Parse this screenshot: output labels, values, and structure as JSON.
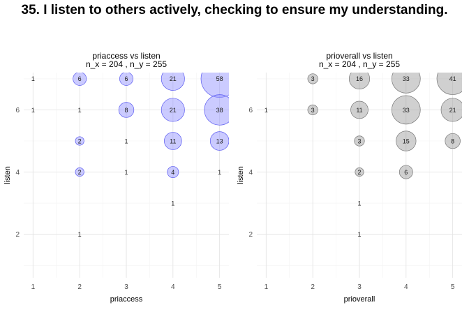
{
  "title": "35. I listen to others actively, checking to ensure my understanding.",
  "chart_data": [
    {
      "type": "scatter",
      "title": "priaccess vs listen",
      "subtitle": "n_x = 204 , n_y = 255",
      "xlabel": "priaccess",
      "ylabel": "listen",
      "xlim": [
        0.8,
        5.2
      ],
      "ylim": [
        0.6,
        7.2
      ],
      "x_ticks": [
        1,
        2,
        3,
        4,
        5
      ],
      "y_ticks": [
        2,
        4,
        6
      ],
      "grid": true,
      "color": "#0000ff",
      "points": [
        {
          "x": 1,
          "y": 7,
          "n": 1
        },
        {
          "x": 2,
          "y": 7,
          "n": 6
        },
        {
          "x": 3,
          "y": 7,
          "n": 6
        },
        {
          "x": 4,
          "y": 7,
          "n": 21
        },
        {
          "x": 5,
          "y": 7,
          "n": 58
        },
        {
          "x": 1,
          "y": 6,
          "n": 1
        },
        {
          "x": 2,
          "y": 6,
          "n": 1
        },
        {
          "x": 3,
          "y": 6,
          "n": 8
        },
        {
          "x": 4,
          "y": 6,
          "n": 21
        },
        {
          "x": 5,
          "y": 6,
          "n": 38
        },
        {
          "x": 2,
          "y": 5,
          "n": 2
        },
        {
          "x": 3,
          "y": 5,
          "n": 1
        },
        {
          "x": 4,
          "y": 5,
          "n": 11
        },
        {
          "x": 5,
          "y": 5,
          "n": 13
        },
        {
          "x": 2,
          "y": 4,
          "n": 2
        },
        {
          "x": 3,
          "y": 4,
          "n": 1
        },
        {
          "x": 4,
          "y": 4,
          "n": 4
        },
        {
          "x": 5,
          "y": 4,
          "n": 1
        },
        {
          "x": 4,
          "y": 3,
          "n": 1
        },
        {
          "x": 2,
          "y": 2,
          "n": 1
        }
      ]
    },
    {
      "type": "scatter",
      "title": "prioverall vs listen",
      "subtitle": "n_x = 204 , n_y = 255",
      "xlabel": "prioverall",
      "ylabel": "listen",
      "xlim": [
        0.8,
        5.2
      ],
      "ylim": [
        0.6,
        7.2
      ],
      "x_ticks": [
        1,
        2,
        3,
        4,
        5
      ],
      "y_ticks": [
        2,
        4,
        6
      ],
      "grid": true,
      "color": "#999999",
      "points": [
        {
          "x": 2,
          "y": 7,
          "n": 3
        },
        {
          "x": 3,
          "y": 7,
          "n": 16
        },
        {
          "x": 4,
          "y": 7,
          "n": 33
        },
        {
          "x": 5,
          "y": 7,
          "n": 41
        },
        {
          "x": 1,
          "y": 6,
          "n": 1
        },
        {
          "x": 2,
          "y": 6,
          "n": 3
        },
        {
          "x": 3,
          "y": 6,
          "n": 11
        },
        {
          "x": 4,
          "y": 6,
          "n": 33
        },
        {
          "x": 5,
          "y": 6,
          "n": 21
        },
        {
          "x": 3,
          "y": 5,
          "n": 3
        },
        {
          "x": 4,
          "y": 5,
          "n": 15
        },
        {
          "x": 5,
          "y": 5,
          "n": 8
        },
        {
          "x": 3,
          "y": 4,
          "n": 2
        },
        {
          "x": 4,
          "y": 4,
          "n": 6
        },
        {
          "x": 3,
          "y": 3,
          "n": 1
        },
        {
          "x": 3,
          "y": 2,
          "n": 1
        }
      ]
    }
  ]
}
